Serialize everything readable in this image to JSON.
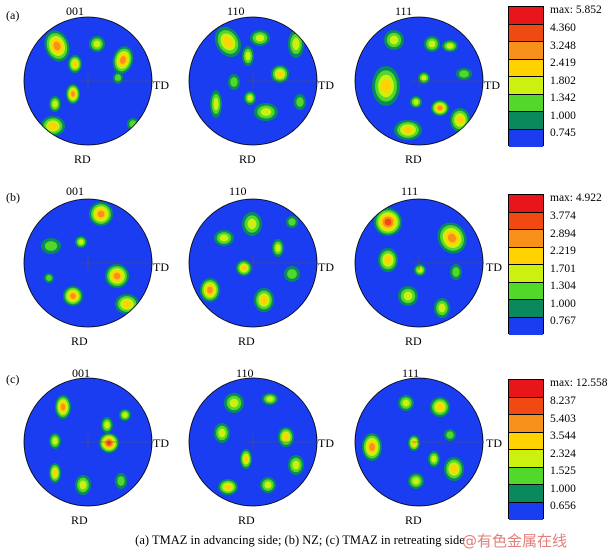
{
  "rows": [
    {
      "letter": "(a)",
      "poles": [
        "001",
        "110",
        "111"
      ],
      "legend": {
        "max": "max: 5.852",
        "values": [
          "4.360",
          "3.248",
          "2.419",
          "1.802",
          "1.342",
          "1.000",
          "0.745"
        ]
      }
    },
    {
      "letter": "(b)",
      "poles": [
        "001",
        "110",
        "111"
      ],
      "legend": {
        "max": "max: 4.922",
        "values": [
          "3.774",
          "2.894",
          "2.219",
          "1.701",
          "1.304",
          "1.000",
          "0.767"
        ]
      }
    },
    {
      "letter": "(c)",
      "poles": [
        "001",
        "110",
        "111"
      ],
      "legend": {
        "max": "max: 12.558",
        "values": [
          "8.237",
          "5.403",
          "3.544",
          "2.324",
          "1.525",
          "1.000",
          "0.656"
        ]
      }
    }
  ],
  "axis_labels": {
    "td": "TD",
    "rd": "RD"
  },
  "legend_colors": [
    "#e8151b",
    "#f04a12",
    "#f7911c",
    "#ffd200",
    "#ccf010",
    "#52d82a",
    "#0a8a5c",
    "#1a3df2"
  ],
  "background_color": "#1a3df2",
  "caption": "(a) TMAZ in advancing side; (b) NZ; (c) TMAZ in retreating side",
  "watermark": "@有色金属在线"
}
